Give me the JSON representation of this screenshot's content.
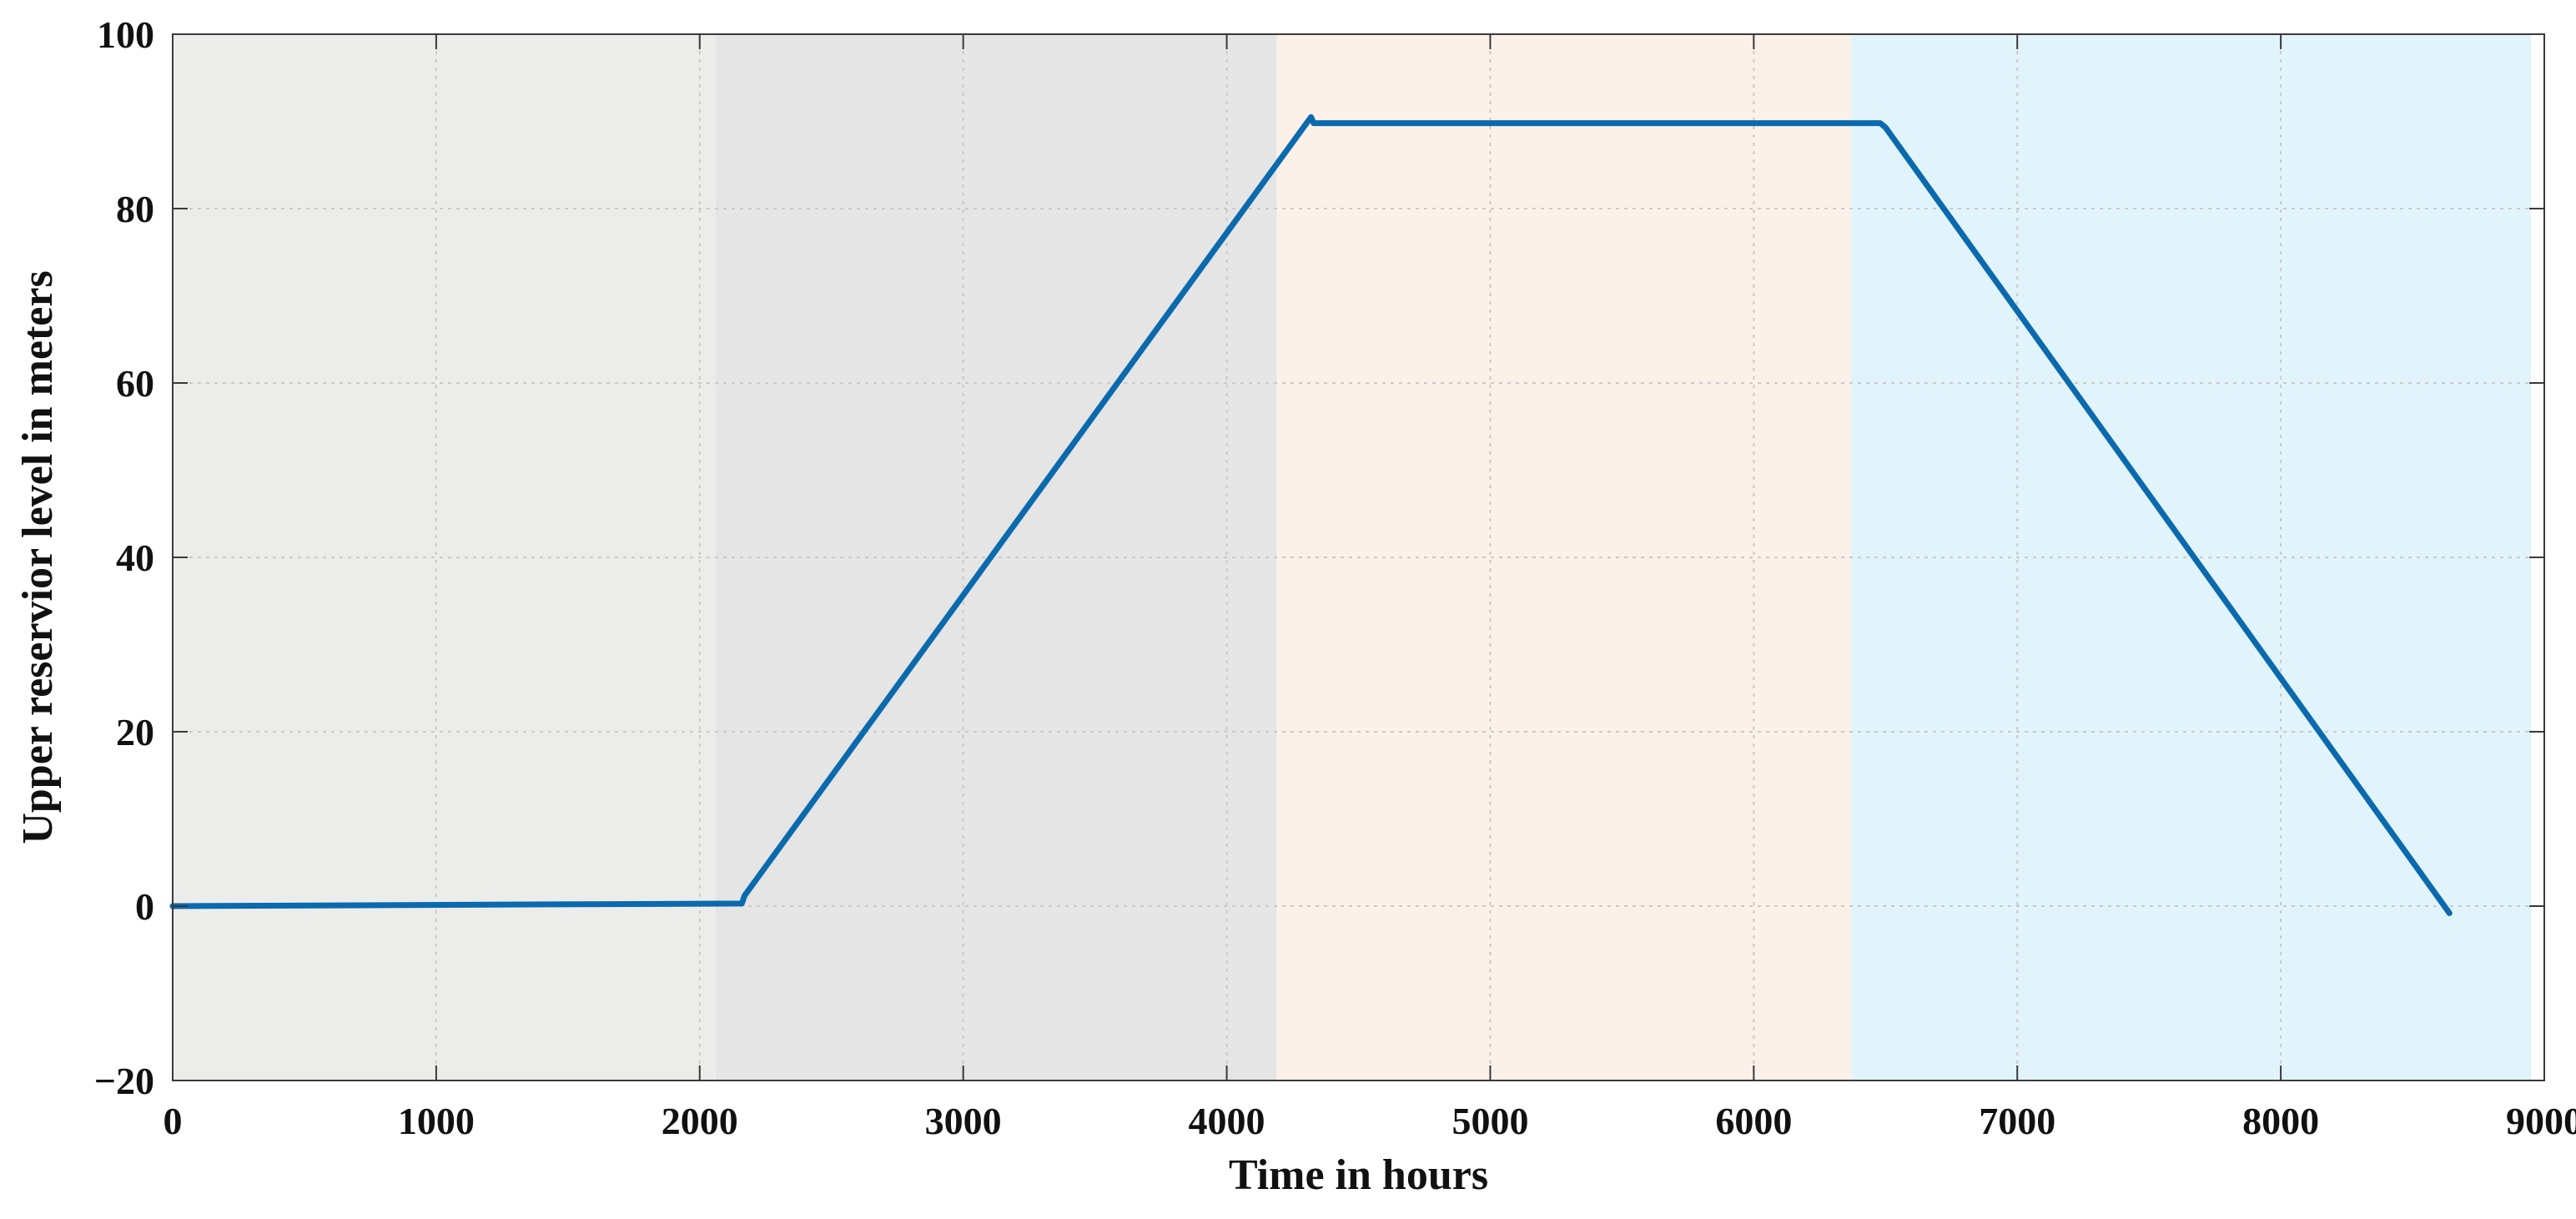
{
  "chart_data": {
    "type": "line",
    "title": "",
    "xlabel": "Time in hours",
    "ylabel": "Upper reservior level in meters",
    "xlim": [
      0,
      9000
    ],
    "ylim": [
      -20,
      100
    ],
    "x_ticks": [
      0,
      1000,
      2000,
      3000,
      4000,
      5000,
      6000,
      7000,
      8000,
      9000
    ],
    "y_ticks": [
      -20,
      0,
      20,
      40,
      60,
      80,
      100
    ],
    "x_tick_labels": [
      "0",
      "1000",
      "2000",
      "3000",
      "4000",
      "5000",
      "6000",
      "7000",
      "8000",
      "9000"
    ],
    "y_tick_labels": [
      "−20",
      "0",
      "20",
      "40",
      "60",
      "80",
      "100"
    ],
    "grid": true,
    "shaded_regions": [
      {
        "x_start": 0,
        "x_end": 2060,
        "color": "#ecedea"
      },
      {
        "x_start": 2060,
        "x_end": 4190,
        "color": "#e5e5e5"
      },
      {
        "x_start": 4190,
        "x_end": 6370,
        "color": "#fbf1e8"
      },
      {
        "x_start": 6370,
        "x_end": 8950,
        "color": "#e2f4fb"
      }
    ],
    "series": [
      {
        "color": "#0b6aae",
        "x": [
          0,
          2160,
          2170,
          4320,
          4330,
          6480,
          6500,
          8640
        ],
        "y": [
          0,
          0.3,
          1.2,
          90.5,
          89.8,
          89.8,
          89.3,
          -0.8
        ]
      }
    ]
  }
}
